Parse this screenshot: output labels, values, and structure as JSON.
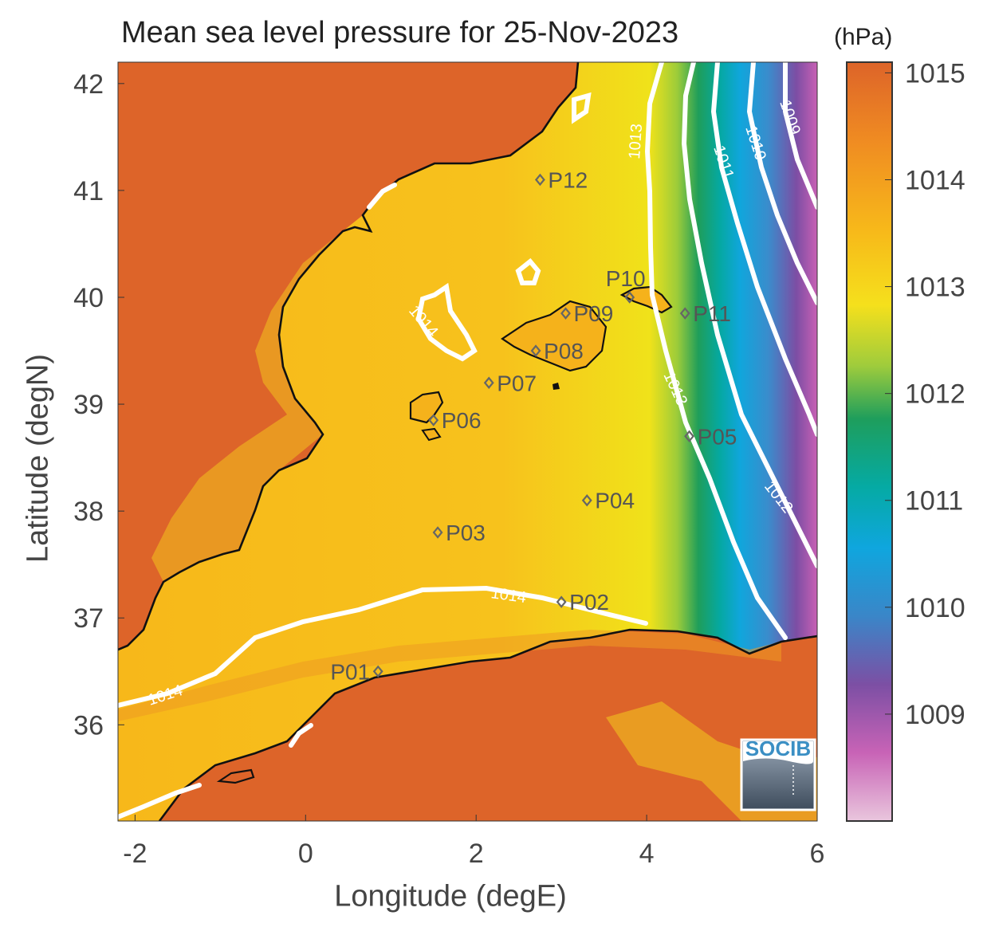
{
  "title": "Mean sea level pressure for 25-Nov-2023",
  "colorbar": {
    "unit": "(hPa)",
    "ticks": [
      "1015",
      "1014",
      "1013",
      "1012",
      "1011",
      "1010",
      "1009"
    ],
    "range": [
      1008,
      1015.1
    ]
  },
  "axes": {
    "xlabel": "Longitude (degE)",
    "ylabel": "Latitude (degN)",
    "xlim": [
      -2.2,
      6.0
    ],
    "ylim": [
      35.1,
      42.2
    ],
    "xticks": [
      "-2",
      "0",
      "2",
      "4",
      "6"
    ],
    "yticks": [
      "42",
      "41",
      "40",
      "39",
      "38",
      "37",
      "36"
    ]
  },
  "points": [
    {
      "name": "P01",
      "lon": 0.85,
      "lat": 36.5
    },
    {
      "name": "P02",
      "lon": 3.0,
      "lat": 37.15
    },
    {
      "name": "P03",
      "lon": 1.55,
      "lat": 37.8
    },
    {
      "name": "P04",
      "lon": 3.3,
      "lat": 38.1
    },
    {
      "name": "P05",
      "lon": 4.5,
      "lat": 38.7
    },
    {
      "name": "P06",
      "lon": 1.5,
      "lat": 38.85
    },
    {
      "name": "P07",
      "lon": 2.15,
      "lat": 39.2
    },
    {
      "name": "P08",
      "lon": 2.7,
      "lat": 39.5
    },
    {
      "name": "P09",
      "lon": 3.05,
      "lat": 39.85
    },
    {
      "name": "P10",
      "lon": 3.8,
      "lat": 40.0
    },
    {
      "name": "P11",
      "lon": 4.45,
      "lat": 39.85
    },
    {
      "name": "P12",
      "lon": 2.75,
      "lat": 41.1
    }
  ],
  "contour_labels": [
    "1014",
    "1014",
    "1014",
    "1013",
    "1013",
    "1012",
    "1011",
    "1010",
    "1009"
  ],
  "logo": {
    "text": "SOCIB"
  },
  "colors": {
    "land": "#dd6429",
    "sea": "#f6be1c",
    "contour": "#ffffff",
    "coastline": "#111111",
    "marker": "#666666"
  }
}
